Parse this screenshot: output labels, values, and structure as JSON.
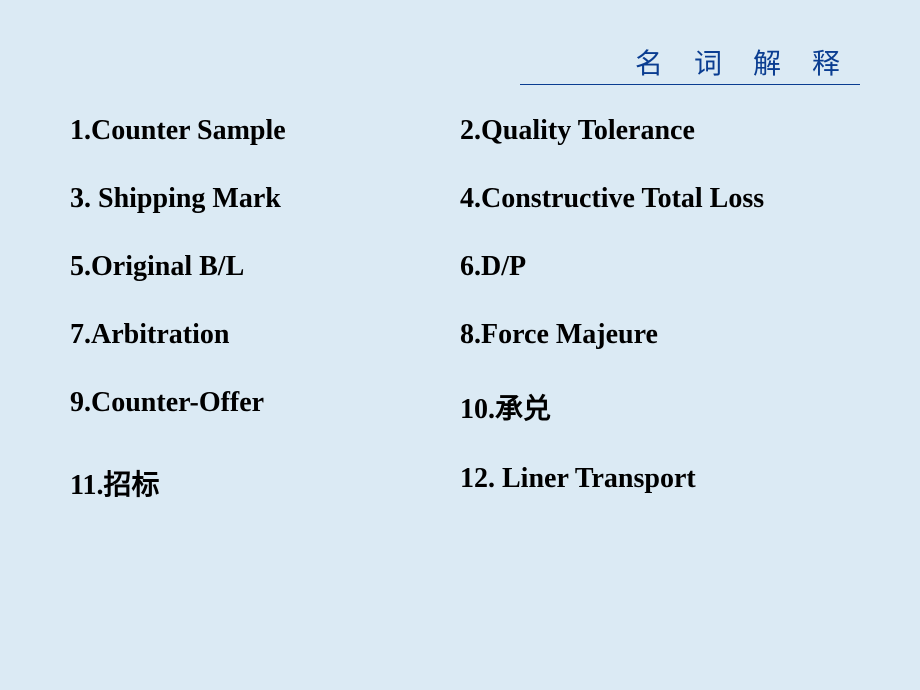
{
  "header": {
    "title": "名 词 解 释"
  },
  "styling": {
    "background_color": "#dbeaf4",
    "header_text_color": "#0a3d91",
    "header_underline_color": "#0a3d91",
    "body_text_color": "#000000",
    "header_fontsize": 28,
    "body_fontsize": 28,
    "body_font_weight": "bold",
    "font_family": "Times New Roman, SimSun, serif",
    "row_spacing": 36
  },
  "terms": {
    "rows": [
      {
        "left": "1.Counter Sample",
        "right": "2.Quality Tolerance"
      },
      {
        "left": "3. Shipping Mark",
        "right": "4.Constructive Total Loss"
      },
      {
        "left": "5.Original  B/L",
        "right": "6.D/P"
      },
      {
        "left": "7.Arbitration",
        "right": "8.Force  Majeure"
      },
      {
        "left": "9.Counter-Offer",
        "right": "10.承兑"
      },
      {
        "left": "11.招标",
        "right": "12. Liner Transport"
      }
    ]
  }
}
